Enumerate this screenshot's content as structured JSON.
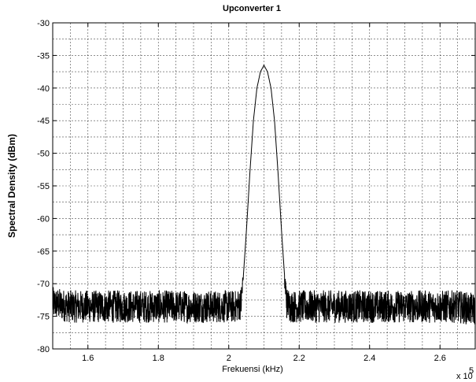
{
  "chart_data": {
    "type": "line",
    "title": "Upconverter 1",
    "xlabel": "Frekuensi (kHz)",
    "ylabel": "Spectral Density (dBm)",
    "x_multiplier": "x 10",
    "x_multiplier_exp": "5",
    "xlim": [
      1.5,
      2.7
    ],
    "ylim": [
      -80,
      -30
    ],
    "x_ticks": [
      1.6,
      1.8,
      2.0,
      2.2,
      2.4,
      2.6
    ],
    "x_tick_labels": [
      "1.6",
      "1.8",
      "2",
      "2.2",
      "2.4",
      "2.6"
    ],
    "y_ticks": [
      -80,
      -75,
      -70,
      -65,
      -60,
      -55,
      -50,
      -45,
      -40,
      -35,
      -30
    ],
    "y_tick_labels": [
      "-80",
      "-75",
      "-70",
      "-65",
      "-60",
      "-55",
      "-50",
      "-45",
      "-40",
      "-35",
      "-30"
    ],
    "grid": true,
    "series": [
      {
        "x": [
          1.5,
          1.55,
          1.6,
          1.65,
          1.7,
          1.75,
          1.8,
          1.85,
          1.9,
          1.95,
          2.0,
          2.02,
          2.035,
          2.04,
          2.05,
          2.06,
          2.07,
          2.08,
          2.09,
          2.1,
          2.11,
          2.12,
          2.13,
          2.14,
          2.15,
          2.16,
          2.165,
          2.18,
          2.2,
          2.25,
          2.3,
          2.35,
          2.4,
          2.45,
          2.5,
          2.55,
          2.6,
          2.65,
          2.7
        ],
        "y": [
          -73,
          -73.5,
          -73.5,
          -73.5,
          -73.5,
          -73.5,
          -73.5,
          -73.5,
          -73.5,
          -73.5,
          -73.5,
          -73.5,
          -73,
          -70,
          -62,
          -53,
          -45,
          -40,
          -37.5,
          -36.5,
          -37.5,
          -40,
          -45,
          -53,
          -62,
          -70,
          -73,
          -73.5,
          -73.5,
          -73.5,
          -73.5,
          -73.5,
          -73.5,
          -73.5,
          -73.5,
          -73.5,
          -73.5,
          -73.5,
          -74
        ],
        "noise_amplitude_db": 2.5
      }
    ]
  }
}
